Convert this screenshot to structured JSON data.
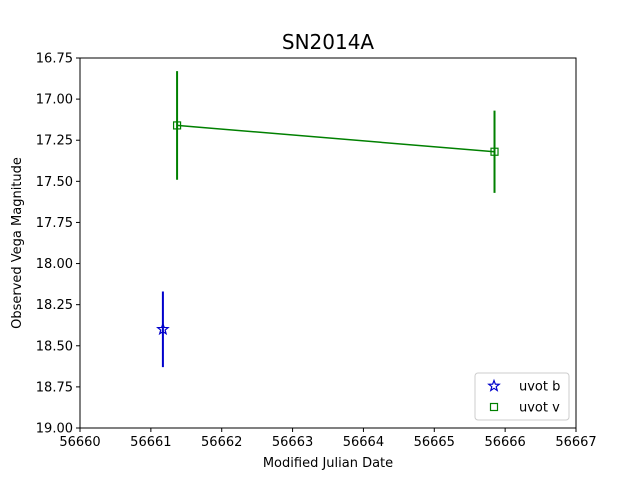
{
  "chart_data": {
    "type": "scatter",
    "title": "SN2014A",
    "xlabel": "Modified Julian Date",
    "ylabel": "Observed Vega Magnitude",
    "xlim": [
      56660,
      56667
    ],
    "ylim": [
      19.0,
      16.75
    ],
    "y_inverted": true,
    "x_ticks": [
      "56660",
      "56661",
      "56662",
      "56663",
      "56664",
      "56665",
      "56666",
      "56667"
    ],
    "y_ticks": [
      "16.75",
      "17.00",
      "17.25",
      "17.50",
      "17.75",
      "18.00",
      "18.25",
      "18.50",
      "18.75",
      "19.00"
    ],
    "grid": false,
    "legend_position": "lower-right",
    "series": [
      {
        "name": "uvot b",
        "color": "#0000cc",
        "marker": "star",
        "connect": false,
        "points": [
          {
            "x": 56661.17,
            "y": 18.4,
            "yerr": 0.23
          }
        ]
      },
      {
        "name": "uvot v",
        "color": "#008000",
        "marker": "square",
        "connect": true,
        "points": [
          {
            "x": 56661.37,
            "y": 17.16,
            "yerr": 0.33
          },
          {
            "x": 56665.85,
            "y": 17.32,
            "yerr": 0.25
          }
        ]
      }
    ]
  }
}
